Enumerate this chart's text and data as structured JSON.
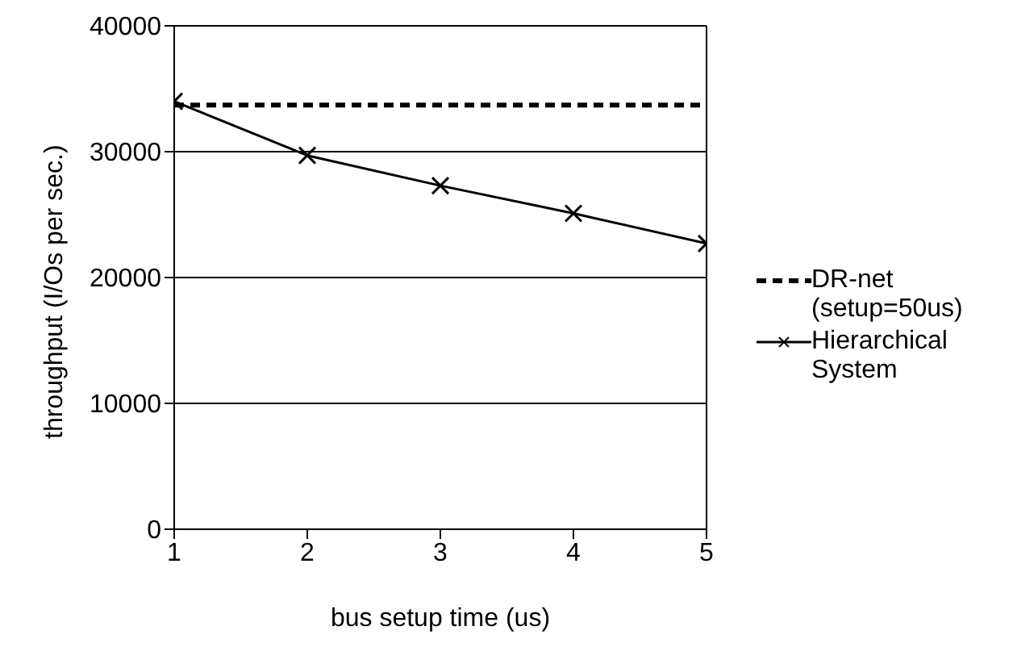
{
  "chart_data": {
    "type": "line",
    "xlabel": "bus setup time (us)",
    "ylabel": "throughput (I/Os per sec.)",
    "x": [
      1,
      2,
      3,
      4,
      5
    ],
    "xlim": [
      1,
      5
    ],
    "xticks": [
      1,
      2,
      3,
      4,
      5
    ],
    "ylim": [
      0,
      40000
    ],
    "yticks": [
      0,
      10000,
      20000,
      30000,
      40000
    ],
    "grid": "y",
    "legend": "right",
    "series": [
      {
        "name": "DR-net (setup=50us)",
        "color": "#000000",
        "line_style": "dashed",
        "marker": "none",
        "values": [
          33700,
          33700,
          33700,
          33700,
          33700
        ]
      },
      {
        "name": "Hierarchical System",
        "color": "#000000",
        "line_style": "solid",
        "marker": "cross",
        "values": [
          34000,
          29700,
          27300,
          25100,
          22700
        ]
      }
    ]
  }
}
